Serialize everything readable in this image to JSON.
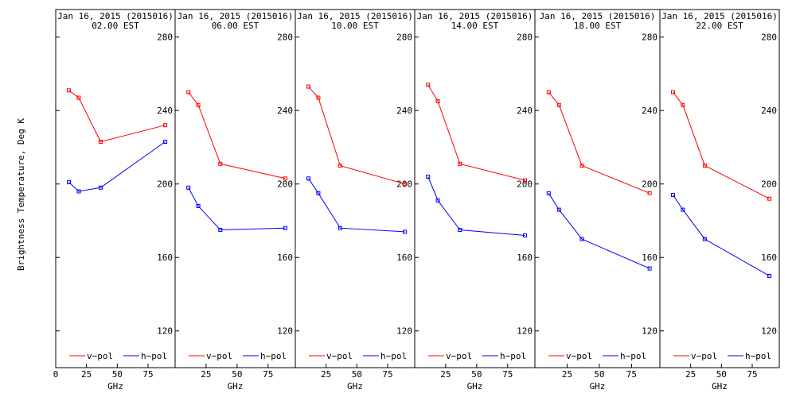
{
  "chart_data": {
    "type": "line",
    "ylabel": "Brightness Temperature, Deg K",
    "xlabel": "GHz",
    "ylim": [
      100,
      295
    ],
    "xlim": [
      0,
      97
    ],
    "yticks": [
      120,
      160,
      200,
      240,
      280
    ],
    "xticks": [
      0,
      25,
      50,
      75,
      100
    ],
    "x": [
      10.7,
      18.7,
      36.5,
      89.0
    ],
    "colors": {
      "v-pol": "#ff0000",
      "h-pol": "#0000ff"
    },
    "legend_labels": [
      "v−pol",
      "h−pol"
    ],
    "panels": [
      {
        "title": "Jan 16, 2015 (2015016)",
        "subtitle": "02.00 EST",
        "series": [
          {
            "name": "v-pol",
            "values": [
              251,
              247,
              223,
              232
            ]
          },
          {
            "name": "h-pol",
            "values": [
              201,
              196,
              198,
              223
            ]
          }
        ]
      },
      {
        "title": "Jan 16, 2015 (2015016)",
        "subtitle": "06.00 EST",
        "series": [
          {
            "name": "v-pol",
            "values": [
              250,
              243,
              211,
              203
            ]
          },
          {
            "name": "h-pol",
            "values": [
              198,
              188,
              175,
              176
            ]
          }
        ]
      },
      {
        "title": "Jan 16, 2015 (2015016)",
        "subtitle": "10.00 EST",
        "series": [
          {
            "name": "v-pol",
            "values": [
              253,
              247,
              210,
              200
            ]
          },
          {
            "name": "h-pol",
            "values": [
              203,
              195,
              176,
              174
            ]
          }
        ]
      },
      {
        "title": "Jan 16, 2015 (2015016)",
        "subtitle": "14.00 EST",
        "series": [
          {
            "name": "v-pol",
            "values": [
              254,
              245,
              211,
              202
            ]
          },
          {
            "name": "h-pol",
            "values": [
              204,
              191,
              175,
              172
            ]
          }
        ]
      },
      {
        "title": "Jan 16, 2015 (2015016)",
        "subtitle": "18.00 EST",
        "series": [
          {
            "name": "v-pol",
            "values": [
              250,
              243,
              210,
              195
            ]
          },
          {
            "name": "h-pol",
            "values": [
              195,
              186,
              170,
              154
            ]
          }
        ]
      },
      {
        "title": "Jan 16, 2015 (2015016)",
        "subtitle": "22.00 EST",
        "series": [
          {
            "name": "v-pol",
            "values": [
              250,
              243,
              210,
              192
            ]
          },
          {
            "name": "h-pol",
            "values": [
              194,
              186,
              170,
              150
            ]
          }
        ]
      }
    ]
  }
}
